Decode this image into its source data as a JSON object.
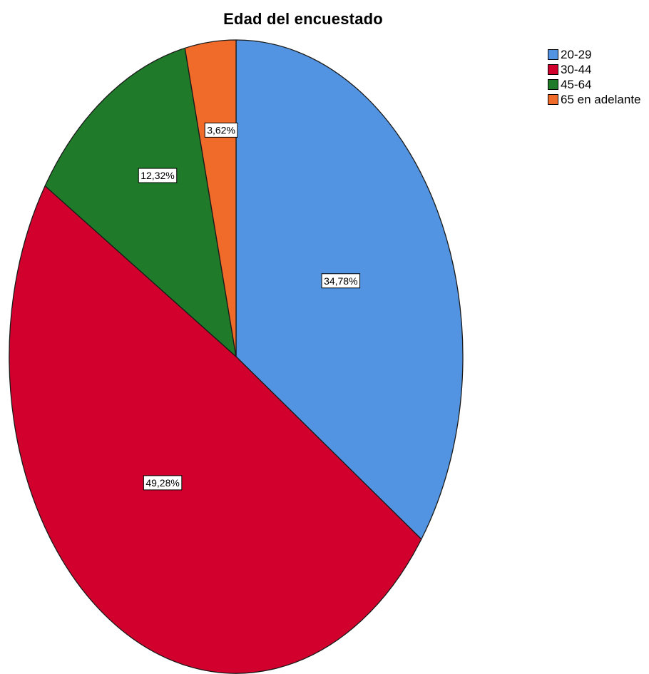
{
  "chart_data": {
    "type": "pie",
    "title": "Edad del encuestado",
    "categories": [
      "20-29",
      "30-44",
      "45-64",
      "65 en adelante"
    ],
    "values": [
      34.78,
      49.28,
      12.32,
      3.62
    ],
    "data_labels": [
      "34,78%",
      "49,28%",
      "12,32%",
      "3,62%"
    ],
    "colors": [
      "#5294e2",
      "#d2002c",
      "#1f7a2a",
      "#f06a2a"
    ],
    "legend_position": "top-right",
    "start_angle": "12 o'clock",
    "direction": "clockwise"
  }
}
